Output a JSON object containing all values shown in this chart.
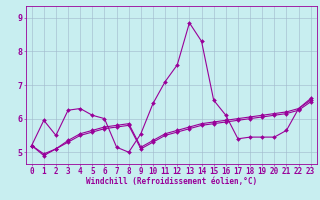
{
  "title": "",
  "xlabel": "Windchill (Refroidissement éolien,°C)",
  "background_color": "#c8eef0",
  "grid_color": "#a0b8cc",
  "line_color": "#990099",
  "xlim": [
    -0.5,
    23.5
  ],
  "ylim": [
    4.65,
    9.35
  ],
  "xticks": [
    0,
    1,
    2,
    3,
    4,
    5,
    6,
    7,
    8,
    9,
    10,
    11,
    12,
    13,
    14,
    15,
    16,
    17,
    18,
    19,
    20,
    21,
    22,
    23
  ],
  "yticks": [
    5,
    6,
    7,
    8,
    9
  ],
  "line1_x": [
    0,
    1,
    2,
    3,
    4,
    5,
    6,
    7,
    8,
    9,
    10,
    11,
    12,
    13,
    14,
    15,
    16,
    17,
    18,
    19,
    20,
    21,
    22,
    23
  ],
  "line1_y": [
    5.2,
    5.95,
    5.5,
    6.25,
    6.3,
    6.1,
    6.0,
    5.15,
    5.0,
    5.55,
    6.45,
    7.1,
    7.6,
    8.85,
    8.3,
    6.55,
    6.1,
    5.4,
    5.45,
    5.45,
    5.45,
    5.65,
    6.3,
    6.6
  ],
  "line2_x": [
    0,
    1,
    2,
    3,
    4,
    5,
    6,
    7,
    8,
    9,
    10,
    11,
    12,
    13,
    14,
    15,
    16,
    17,
    18,
    19,
    20,
    21,
    22,
    23
  ],
  "line2_y": [
    5.2,
    4.9,
    5.1,
    5.35,
    5.55,
    5.65,
    5.75,
    5.8,
    5.85,
    5.15,
    5.35,
    5.55,
    5.65,
    5.75,
    5.85,
    5.9,
    5.95,
    6.0,
    6.05,
    6.1,
    6.15,
    6.2,
    6.3,
    6.55
  ],
  "line3_x": [
    0,
    1,
    2,
    3,
    4,
    5,
    6,
    7,
    8,
    9,
    10,
    11,
    12,
    13,
    14,
    15,
    16,
    17,
    18,
    19,
    20,
    21,
    22,
    23
  ],
  "line3_y": [
    5.2,
    4.95,
    5.1,
    5.3,
    5.5,
    5.6,
    5.7,
    5.75,
    5.8,
    5.1,
    5.3,
    5.5,
    5.6,
    5.7,
    5.8,
    5.85,
    5.9,
    5.95,
    6.0,
    6.05,
    6.1,
    6.15,
    6.25,
    6.5
  ],
  "tick_fontsize": 5.5,
  "xlabel_fontsize": 5.5,
  "marker_size": 2.0,
  "line_width": 0.8
}
